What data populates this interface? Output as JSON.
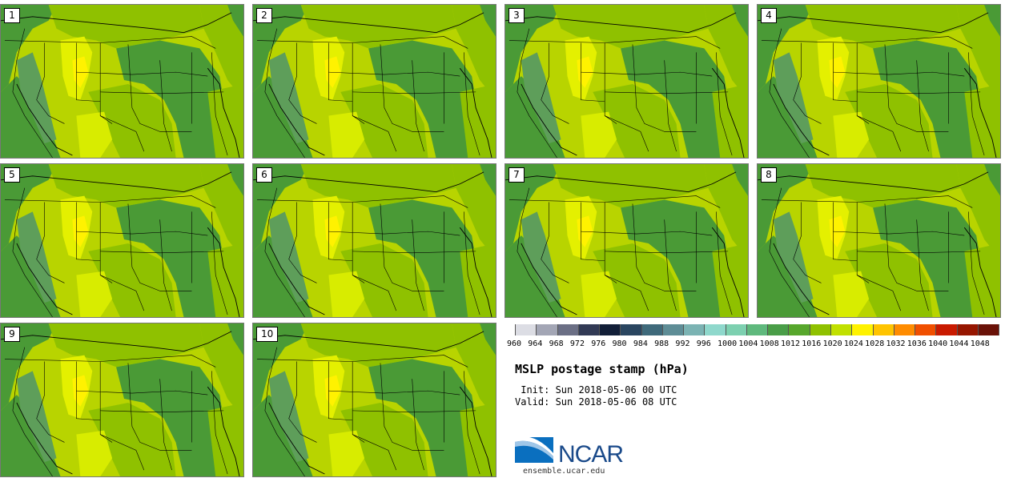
{
  "panels": [
    {
      "label": "1"
    },
    {
      "label": "2"
    },
    {
      "label": "3"
    },
    {
      "label": "4"
    },
    {
      "label": "5"
    },
    {
      "label": "6"
    },
    {
      "label": "7"
    },
    {
      "label": "8"
    },
    {
      "label": "9"
    },
    {
      "label": "10"
    }
  ],
  "legend": {
    "ticks": [
      "960",
      "964",
      "968",
      "972",
      "976",
      "980",
      "984",
      "988",
      "992",
      "996",
      "1000",
      "1004",
      "1008",
      "1012",
      "1016",
      "1020",
      "1024",
      "1028",
      "1032",
      "1036",
      "1040",
      "1044",
      "1048"
    ],
    "colors": [
      "#dcdde4",
      "#a3a6b5",
      "#6b6f85",
      "#323a55",
      "#121f38",
      "#2a4660",
      "#3f6a7b",
      "#5e8d96",
      "#7bb3b3",
      "#8fd8cc",
      "#7dd0b0",
      "#5fb97d",
      "#4a9e48",
      "#57a72c",
      "#8fc100",
      "#c1e000",
      "#fff200",
      "#ffc400",
      "#ff8c00",
      "#f04f00",
      "#c91a00",
      "#961600",
      "#6a1208"
    ]
  },
  "title": "MSLP postage stamp (hPa)",
  "init": " Init: Sun 2018-05-06 00 UTC",
  "valid": "Valid: Sun 2018-05-06 08 UTC",
  "logo": {
    "text": "NCAR",
    "site": "ensemble.ucar.edu"
  }
}
